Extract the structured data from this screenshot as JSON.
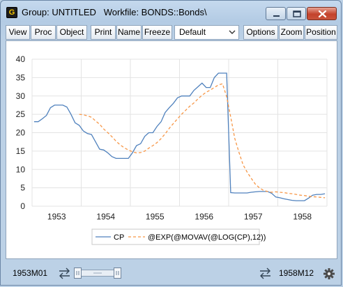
{
  "window": {
    "icon_letter": "G",
    "title": "Group: UNTITLED   Workfile: BONDS::Bonds\\"
  },
  "toolbar": {
    "buttons": [
      "View",
      "Proc",
      "Object",
      "Print",
      "Name",
      "Freeze",
      "Options",
      "Zoom",
      "Position"
    ],
    "select_value": "Default"
  },
  "chart_data": {
    "type": "line",
    "title": "",
    "xlabel": "",
    "ylabel": "",
    "x_ticks": [
      "1953",
      "1954",
      "1955",
      "1956",
      "1957",
      "1958"
    ],
    "y_ticks": [
      "0",
      "5",
      "10",
      "15",
      "20",
      "25",
      "30",
      "35",
      "40"
    ],
    "xlim": [
      "1953M01",
      "1958M12"
    ],
    "ylim": [
      0,
      40
    ],
    "grid": true,
    "legend": "bottom-center",
    "series": [
      {
        "name": "CP",
        "color": "#4f81bd",
        "style": "solid",
        "x": [
          0,
          1,
          2,
          3,
          4,
          5,
          6,
          7,
          8,
          9,
          10,
          11,
          12,
          13,
          14,
          15,
          16,
          17,
          18,
          19,
          20,
          21,
          22,
          23,
          24,
          25,
          26,
          27,
          28,
          29,
          30,
          31,
          32,
          33,
          34,
          35,
          36,
          37,
          38,
          39,
          40,
          41,
          42,
          43,
          44,
          45,
          46,
          47,
          48,
          49,
          50,
          51,
          52,
          53,
          54,
          55,
          56,
          57,
          58,
          59,
          60,
          61,
          62,
          63,
          64,
          65,
          66,
          67,
          68,
          69,
          70,
          71
        ],
        "values": [
          23.0,
          23.0,
          23.8,
          24.7,
          26.8,
          27.5,
          27.5,
          27.5,
          27.0,
          25.0,
          22.7,
          22.0,
          20.5,
          19.8,
          19.5,
          17.5,
          15.5,
          15.3,
          14.5,
          13.5,
          13.0,
          13.0,
          13.0,
          13.0,
          14.5,
          16.5,
          17.0,
          19.0,
          20.0,
          20.0,
          21.7,
          23.0,
          25.5,
          26.8,
          28.0,
          29.5,
          30.0,
          30.0,
          30.0,
          31.5,
          32.5,
          33.5,
          32.3,
          32.3,
          35.0,
          36.2,
          36.2,
          36.2,
          3.7,
          3.6,
          3.6,
          3.6,
          3.6,
          3.8,
          3.9,
          4.0,
          4.0,
          4.0,
          3.5,
          2.5,
          2.3,
          2.0,
          1.8,
          1.6,
          1.5,
          1.5,
          1.5,
          2.2,
          3.0,
          3.2,
          3.2,
          3.4
        ]
      },
      {
        "name": "@EXP(@MOVAV(@LOG(CP),12))",
        "color": "#f79646",
        "style": "dashed",
        "x": [
          11,
          12,
          13,
          14,
          15,
          16,
          17,
          18,
          19,
          20,
          21,
          22,
          23,
          24,
          25,
          26,
          27,
          28,
          29,
          30,
          31,
          32,
          33,
          34,
          35,
          36,
          37,
          38,
          39,
          40,
          41,
          42,
          43,
          44,
          45,
          46,
          47,
          48,
          49,
          50,
          51,
          52,
          53,
          54,
          55,
          56,
          57,
          58,
          59,
          60,
          61,
          62,
          63,
          64,
          65,
          66,
          67,
          68,
          69,
          70,
          71
        ],
        "values": [
          25.0,
          24.9,
          24.6,
          24.2,
          23.2,
          22.3,
          21.0,
          20.0,
          18.9,
          17.7,
          16.7,
          15.9,
          15.3,
          14.8,
          14.5,
          14.6,
          15.0,
          15.8,
          16.5,
          17.3,
          18.4,
          19.7,
          21.2,
          22.5,
          23.8,
          25.0,
          26.1,
          27.2,
          28.1,
          29.2,
          30.2,
          31.0,
          31.6,
          32.3,
          33.0,
          33.3,
          29.8,
          24.3,
          18.4,
          14.7,
          11.3,
          9.3,
          7.6,
          6.0,
          5.0,
          4.3,
          4.0,
          3.8,
          3.9,
          3.8,
          3.7,
          3.5,
          3.4,
          3.2,
          3.0,
          2.9,
          2.7,
          2.6,
          2.5,
          2.4,
          2.3
        ]
      }
    ]
  },
  "statusbar": {
    "start": "1953M01",
    "end": "1958M12"
  }
}
